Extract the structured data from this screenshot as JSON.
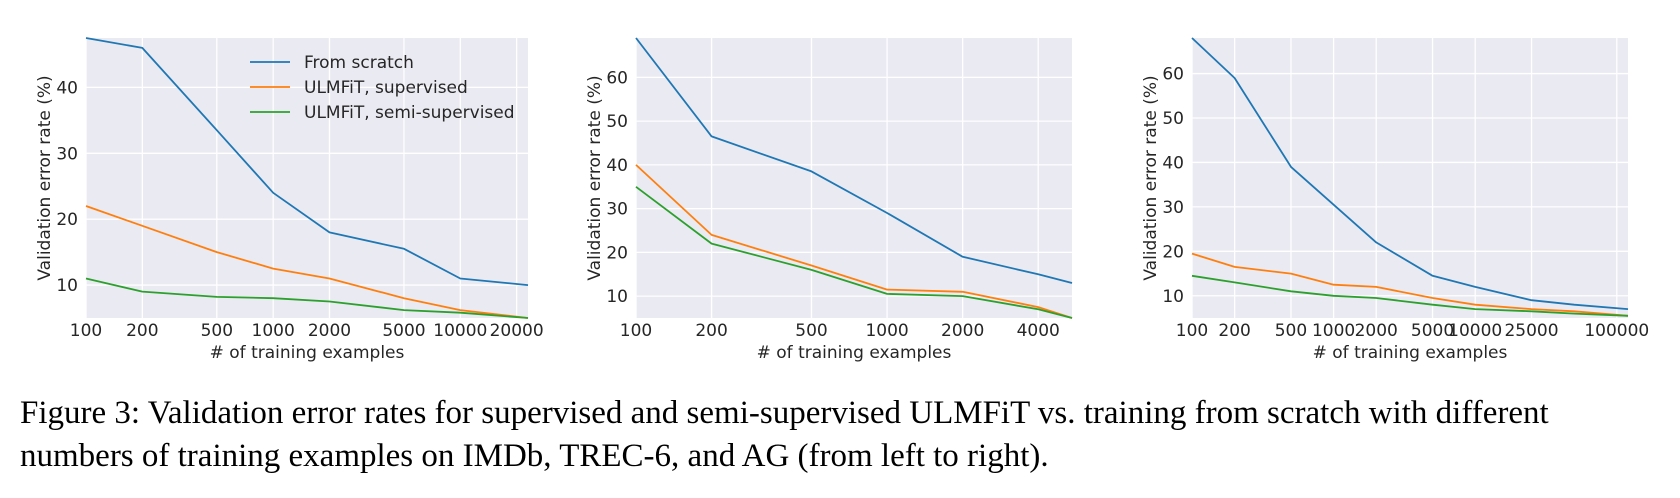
{
  "chart_data": [
    {
      "type": "line",
      "xlabel": "# of training examples",
      "ylabel": "Validation error rate (%)",
      "x_scale": "log",
      "xlim": [
        100,
        23000
      ],
      "ylim": [
        5,
        47.5
      ],
      "xticks": [
        100,
        200,
        500,
        1000,
        2000,
        5000,
        10000,
        20000
      ],
      "xtick_labels": [
        "100",
        "200",
        "500",
        "1000",
        "2000",
        "5000",
        "10000",
        "20000"
      ],
      "yticks": [
        10,
        20,
        30,
        40
      ],
      "yticks_labels": [
        "10",
        "20",
        "30",
        "40"
      ],
      "grid": true,
      "legend_position": "top-center",
      "legend": [
        "From scratch",
        "ULMFiT, supervised",
        "ULMFiT, semi-supervised"
      ],
      "x": [
        100,
        200,
        500,
        1000,
        2000,
        5000,
        10000,
        23000
      ],
      "series": [
        {
          "name": "From scratch",
          "color": "#1f77b4",
          "values": [
            47.5,
            46,
            33.5,
            24,
            18,
            15.5,
            11,
            10
          ]
        },
        {
          "name": "ULMFiT, supervised",
          "color": "#ff7f0e",
          "values": [
            22,
            19,
            15,
            12.5,
            11,
            8,
            6.2,
            5
          ]
        },
        {
          "name": "ULMFiT, semi-supervised",
          "color": "#2ca02c",
          "values": [
            11,
            9,
            8.2,
            8,
            7.5,
            6.2,
            5.8,
            5
          ]
        }
      ]
    },
    {
      "type": "line",
      "xlabel": "# of training examples",
      "ylabel": "Validation error rate (%)",
      "x_scale": "log",
      "xlim": [
        100,
        5452
      ],
      "ylim": [
        5,
        69
      ],
      "xticks": [
        100,
        200,
        500,
        1000,
        2000,
        4000
      ],
      "xtick_labels": [
        "100",
        "200",
        "500",
        "1000",
        "2000",
        "4000"
      ],
      "yticks": [
        10,
        20,
        30,
        40,
        50,
        60
      ],
      "yticks_labels": [
        "10",
        "20",
        "30",
        "40",
        "50",
        "60"
      ],
      "grid": true,
      "x": [
        100,
        200,
        500,
        1000,
        2000,
        4000,
        5452
      ],
      "series": [
        {
          "name": "From scratch",
          "color": "#1f77b4",
          "values": [
            69,
            46.5,
            38.5,
            29,
            19,
            15,
            13
          ]
        },
        {
          "name": "ULMFiT, supervised",
          "color": "#ff7f0e",
          "values": [
            40,
            24,
            17,
            11.5,
            11,
            7.5,
            5
          ]
        },
        {
          "name": "ULMFiT, semi-supervised",
          "color": "#2ca02c",
          "values": [
            35,
            22,
            16,
            10.5,
            10,
            7,
            5
          ]
        }
      ]
    },
    {
      "type": "line",
      "xlabel": "# of training examples",
      "ylabel": "Validation error rate (%)",
      "x_scale": "log",
      "xlim": [
        100,
        120000
      ],
      "ylim": [
        5,
        68
      ],
      "xticks": [
        100,
        200,
        500,
        1000,
        2000,
        5000,
        10000,
        25000,
        100000
      ],
      "xtick_labels": [
        "100",
        "200",
        "500",
        "1000",
        "2000",
        "5000",
        "10000",
        "25000",
        "100000"
      ],
      "yticks": [
        10,
        20,
        30,
        40,
        50,
        60
      ],
      "yticks_labels": [
        "10",
        "20",
        "30",
        "40",
        "50",
        "60"
      ],
      "grid": true,
      "x": [
        100,
        200,
        500,
        1000,
        2000,
        5000,
        10000,
        25000,
        50000,
        120000
      ],
      "series": [
        {
          "name": "From scratch",
          "color": "#1f77b4",
          "values": [
            68,
            59,
            39,
            30.5,
            22,
            14.5,
            12,
            9,
            8,
            7
          ]
        },
        {
          "name": "ULMFiT, supervised",
          "color": "#ff7f0e",
          "values": [
            19.5,
            16.5,
            15,
            12.5,
            12,
            9.5,
            8,
            7,
            6.5,
            5.5
          ]
        },
        {
          "name": "ULMFiT, semi-supervised",
          "color": "#2ca02c",
          "values": [
            14.5,
            13,
            11,
            10,
            9.5,
            8,
            7,
            6.5,
            6,
            5.5
          ]
        }
      ]
    }
  ],
  "caption": "Figure 3: Validation error rates for supervised and semi-supervised ULMFiT vs. training from scratch with different numbers of training examples on IMDb, TREC-6, and AG (from left to right)."
}
